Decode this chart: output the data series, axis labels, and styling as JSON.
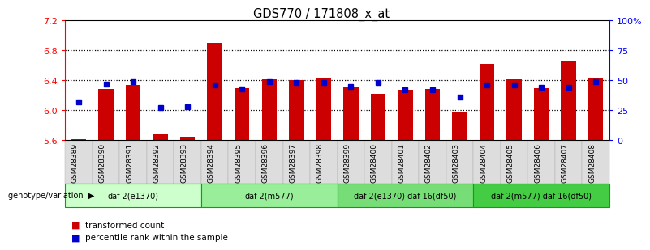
{
  "title": "GDS770 / 171808_x_at",
  "samples": [
    "GSM28389",
    "GSM28390",
    "GSM28391",
    "GSM28392",
    "GSM28393",
    "GSM28394",
    "GSM28395",
    "GSM28396",
    "GSM28397",
    "GSM28398",
    "GSM28399",
    "GSM28400",
    "GSM28401",
    "GSM28402",
    "GSM28403",
    "GSM28404",
    "GSM28405",
    "GSM28406",
    "GSM28407",
    "GSM28408"
  ],
  "bar_values": [
    5.62,
    6.28,
    6.34,
    5.68,
    5.65,
    6.9,
    6.3,
    6.41,
    6.4,
    6.42,
    6.32,
    6.22,
    6.27,
    6.28,
    5.97,
    6.62,
    6.41,
    6.29,
    6.65,
    6.42
  ],
  "percentile_values": [
    32,
    47,
    49,
    27,
    28,
    46,
    43,
    49,
    48,
    48,
    45,
    48,
    42,
    42,
    36,
    46,
    46,
    44,
    44,
    49
  ],
  "ymin": 5.6,
  "ymax": 7.2,
  "yticks": [
    5.6,
    6.0,
    6.4,
    6.8,
    7.2
  ],
  "pct_min": 0,
  "pct_max": 100,
  "pct_ticks": [
    0,
    25,
    50,
    75,
    100
  ],
  "pct_labels": [
    "0",
    "25",
    "50",
    "75",
    "100%"
  ],
  "groups": [
    {
      "label": "daf-2(e1370)",
      "start": 0,
      "end": 5,
      "color": "#ccffcc"
    },
    {
      "label": "daf-2(m577)",
      "start": 5,
      "end": 10,
      "color": "#99ee99"
    },
    {
      "label": "daf-2(e1370) daf-16(df50)",
      "start": 10,
      "end": 15,
      "color": "#77dd77"
    },
    {
      "label": "daf-2(m577) daf-16(df50)",
      "start": 15,
      "end": 20,
      "color": "#44cc44"
    }
  ],
  "bar_color": "#cc0000",
  "dot_color": "#0000cc",
  "bar_width": 0.55,
  "baseline": 5.6,
  "grid_lines": [
    6.0,
    6.4,
    6.8
  ],
  "legend_entries": [
    {
      "color": "#cc0000",
      "label": "transformed count"
    },
    {
      "color": "#0000cc",
      "label": "percentile rank within the sample"
    }
  ]
}
